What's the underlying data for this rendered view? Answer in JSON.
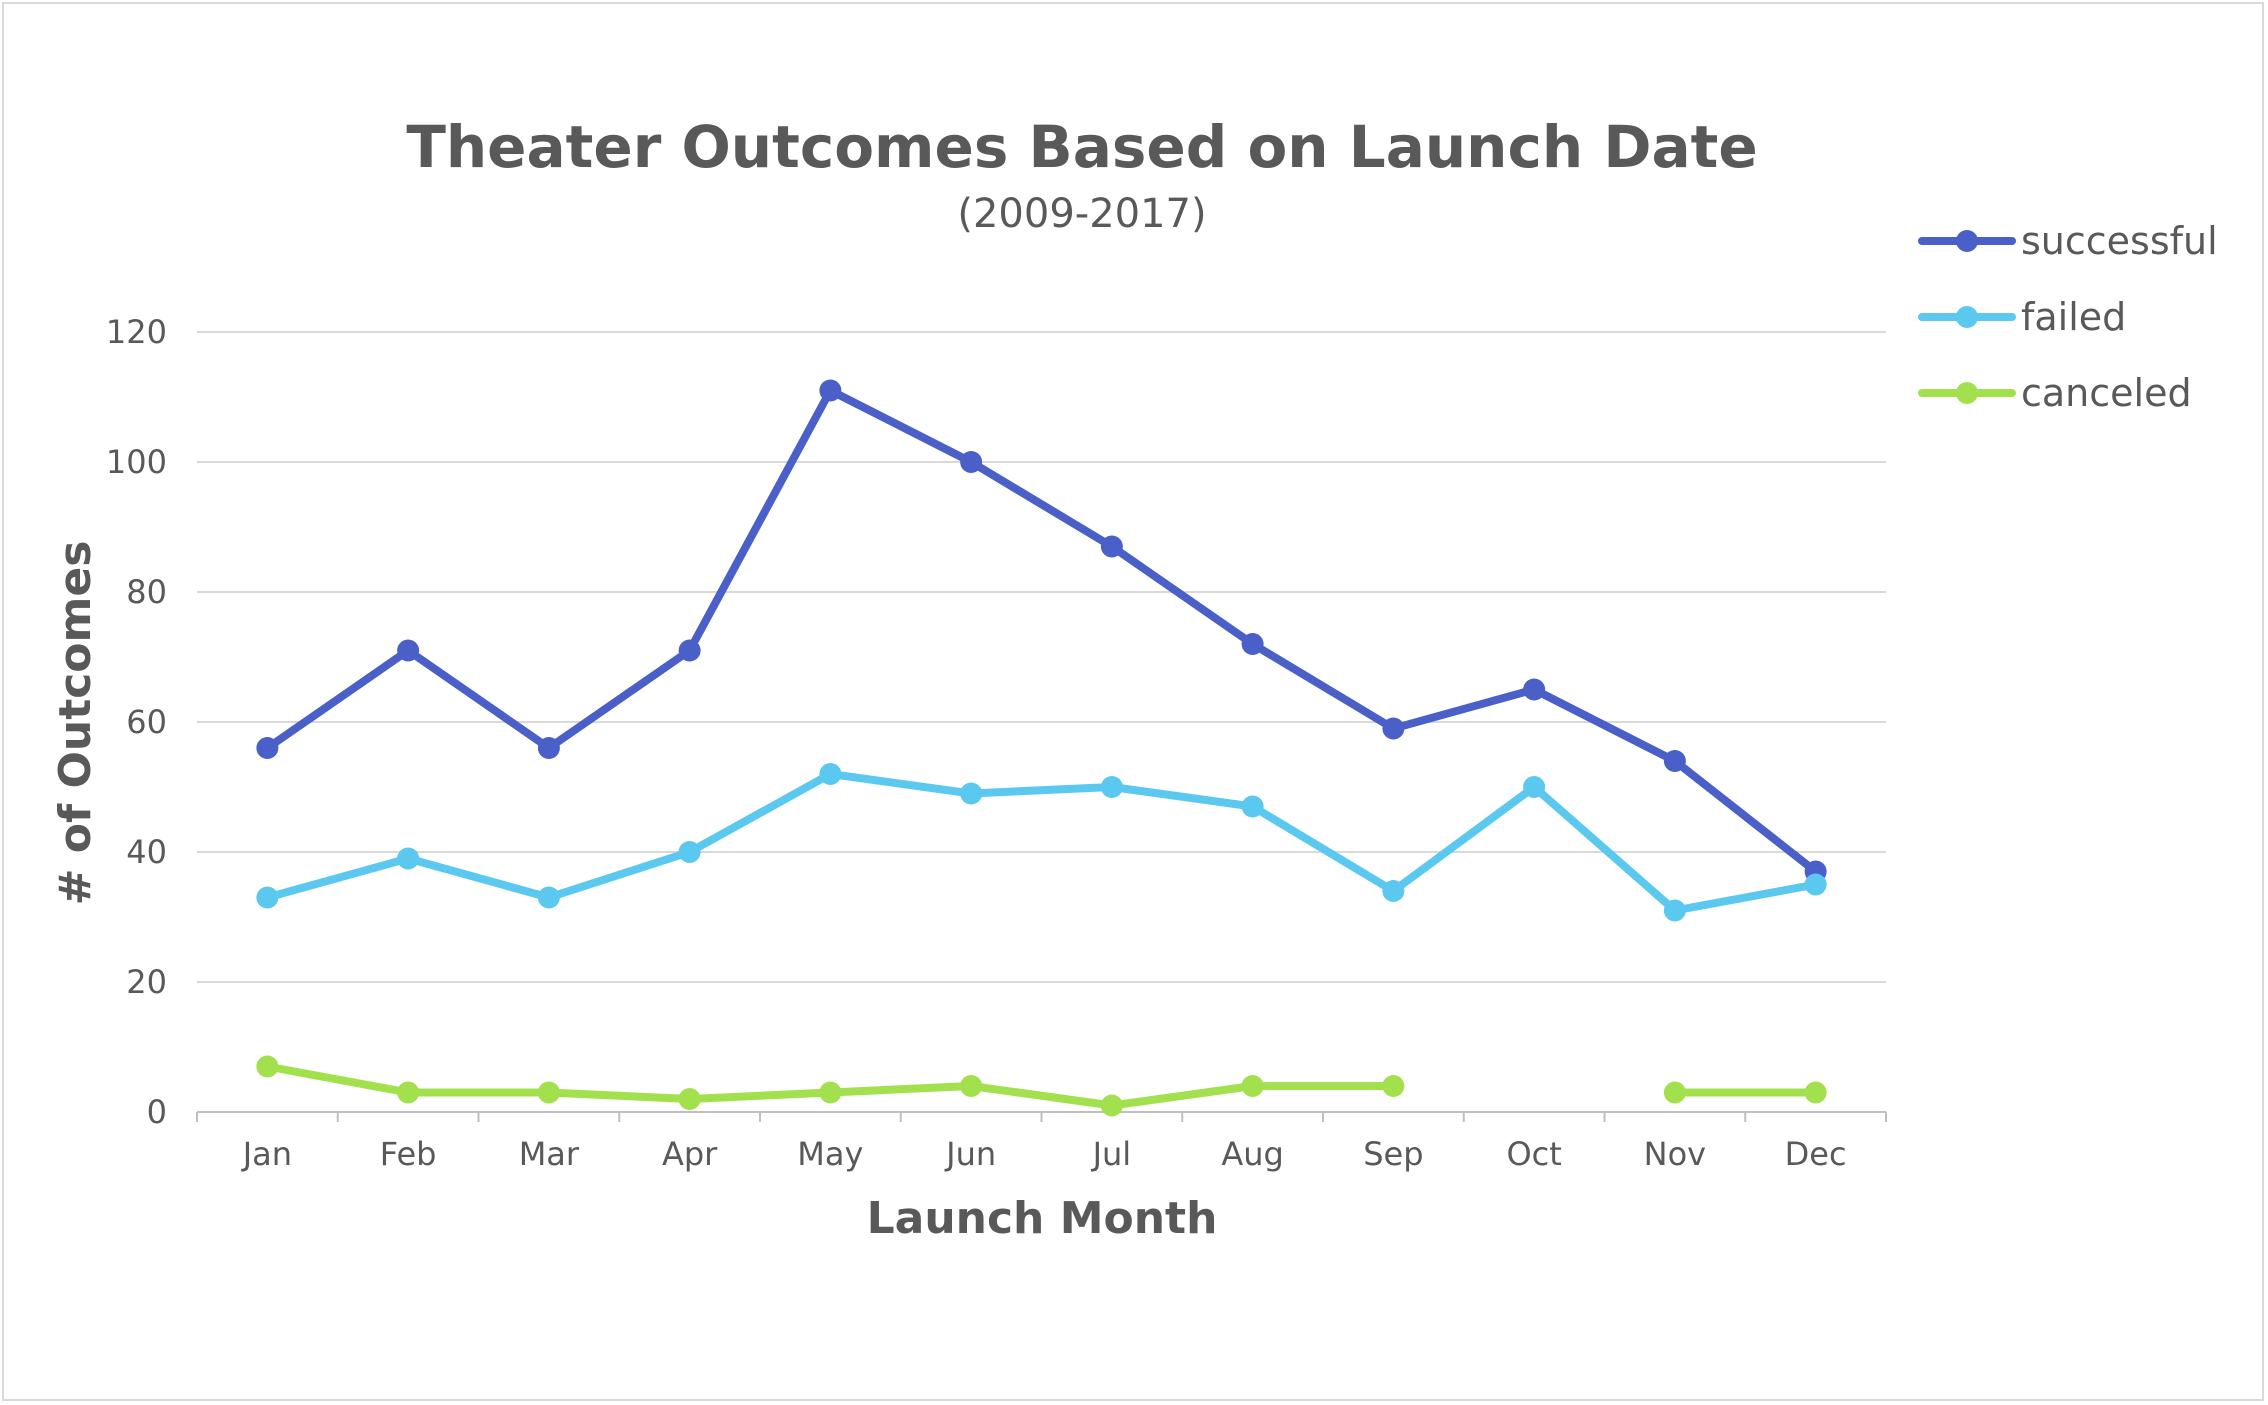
{
  "chart_data": {
    "type": "line",
    "title": "Theater Outcomes Based on Launch Date",
    "subtitle": "(2009-2017)",
    "xlabel": "Launch Month",
    "ylabel": "# of Outcomes",
    "categories": [
      "Jan",
      "Feb",
      "Mar",
      "Apr",
      "May",
      "Jun",
      "Jul",
      "Aug",
      "Sep",
      "Oct",
      "Nov",
      "Dec"
    ],
    "ylim": [
      0,
      120
    ],
    "yticks": [
      0,
      20,
      40,
      60,
      80,
      100,
      120
    ],
    "grid": "horizontal",
    "legend": "right",
    "series": [
      {
        "name": "successful",
        "color": "#4a5fc8",
        "values": [
          56,
          71,
          56,
          71,
          111,
          100,
          87,
          72,
          59,
          65,
          54,
          37
        ]
      },
      {
        "name": "failed",
        "color": "#5bc8f0",
        "values": [
          33,
          39,
          33,
          40,
          52,
          49,
          50,
          47,
          34,
          50,
          31,
          35
        ]
      },
      {
        "name": "canceled",
        "color": "#a2e04e",
        "values": [
          7,
          3,
          3,
          2,
          3,
          4,
          1,
          4,
          4,
          null,
          3,
          3
        ]
      }
    ]
  }
}
